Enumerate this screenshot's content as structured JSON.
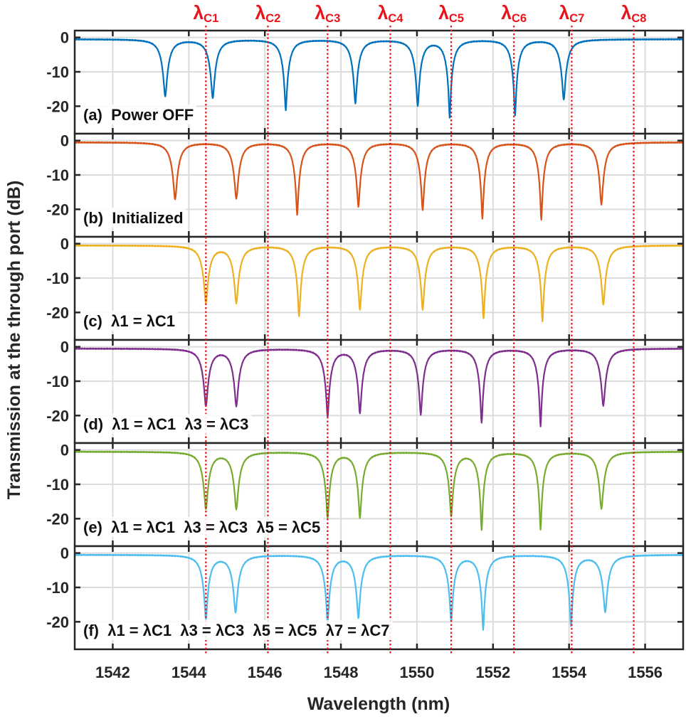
{
  "chart_data": {
    "type": "line",
    "xlabel": "Wavelength (nm)",
    "ylabel": "Transmission at the through port (dB)",
    "xlim": [
      1541,
      1557
    ],
    "ylim": [
      -28,
      2
    ],
    "xticks": [
      1542,
      1544,
      1546,
      1548,
      1550,
      1552,
      1554,
      1556
    ],
    "yticks": [
      0,
      -10,
      -20
    ],
    "grid": true,
    "reference_lines": {
      "color": "#e8141b",
      "style": "dotted",
      "labels": [
        "λC1",
        "λC2",
        "λC3",
        "λC4",
        "λC5",
        "λC6",
        "λC7",
        "λC8"
      ],
      "x": [
        1544.45,
        1546.08,
        1547.65,
        1549.3,
        1550.9,
        1552.55,
        1554.07,
        1555.7
      ]
    },
    "panels": [
      {
        "label": "(a)  Power OFF",
        "color": "#0072BD",
        "dips": {
          "x": [
            1543.38,
            1544.63,
            1546.55,
            1548.38,
            1550.02,
            1550.86,
            1552.58,
            1553.86
          ],
          "y": [
            -17,
            -17.5,
            -21,
            -19,
            -19.6,
            -23,
            -22.5,
            -18
          ]
        }
      },
      {
        "label": "(b)  Initialized",
        "color": "#D95319",
        "dips": {
          "x": [
            1543.64,
            1545.25,
            1546.85,
            1548.46,
            1550.15,
            1551.72,
            1553.27,
            1554.85
          ],
          "y": [
            -17,
            -16.7,
            -21.4,
            -19,
            -20,
            -22.5,
            -23,
            -18.5
          ]
        }
      },
      {
        "label": "(c)  λ1 = λC1",
        "color": "#EDB120",
        "dips": {
          "x": [
            1544.45,
            1545.25,
            1546.9,
            1548.5,
            1550.15,
            1551.75,
            1553.3,
            1554.9
          ],
          "y": [
            -17,
            -17,
            -21,
            -19,
            -19,
            -21.5,
            -22.5,
            -17.5
          ]
        }
      },
      {
        "label": "(d)  λ1 = λC1  λ3 = λC3",
        "color": "#7E2F8E",
        "dips": {
          "x": [
            1544.45,
            1545.25,
            1547.65,
            1548.5,
            1550.1,
            1551.7,
            1553.25,
            1554.9
          ],
          "y": [
            -17,
            -17,
            -20,
            -19,
            -19.5,
            -22,
            -23,
            -17
          ]
        }
      },
      {
        "label": "(e)  λ1 = λC1  λ3 = λC3  λ5 = λC5",
        "color": "#77AC30",
        "dips": {
          "x": [
            1544.45,
            1545.25,
            1547.65,
            1548.5,
            1550.9,
            1551.7,
            1553.25,
            1554.85
          ],
          "y": [
            -17,
            -17,
            -19.5,
            -19.5,
            -19,
            -23,
            -23,
            -17
          ]
        }
      },
      {
        "label": "(f)  λ1 = λC1  λ3 = λC3  λ5 = λC5  λ7 = λC7",
        "color": "#4DBEEE",
        "dips": {
          "x": [
            1544.45,
            1545.23,
            1547.65,
            1548.46,
            1550.9,
            1551.74,
            1554.05,
            1554.95
          ],
          "y": [
            -19,
            -17,
            -20,
            -18.5,
            -19.5,
            -22,
            -21,
            -17
          ]
        }
      }
    ]
  }
}
